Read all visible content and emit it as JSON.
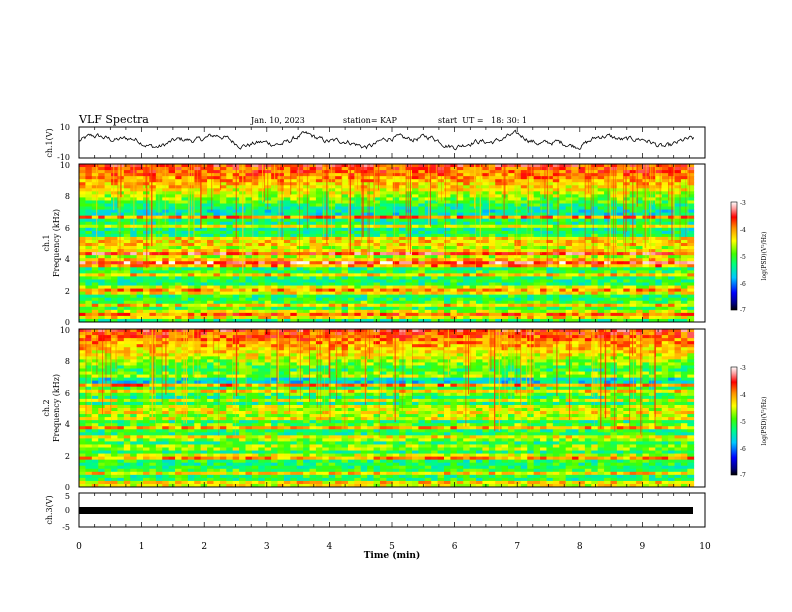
{
  "header": {
    "title": "VLF Spectra",
    "date": "Jan. 10, 2023",
    "station": "station= KAP",
    "start": "start  UT =   18: 30: 1"
  },
  "chart_data": [
    {
      "type": "line",
      "panel": "ch1-waveform",
      "ylabel": "ch.1(V)",
      "ylim": [
        -10,
        10
      ],
      "ytick_labels": [
        "10",
        "-10"
      ],
      "xlim": [
        0,
        10
      ],
      "x_data_end": 9.82,
      "amplitude_range": [
        -6,
        8
      ]
    },
    {
      "type": "heatmap",
      "panel": "ch1-spectrogram",
      "ylabel_line1": "ch.1",
      "ylabel_line2": "Frequency (kHz)",
      "ylim": [
        0,
        10
      ],
      "ytick_labels": [
        "0",
        "2",
        "4",
        "6",
        "8",
        "10"
      ],
      "xlim": [
        0,
        10
      ],
      "x_data_end": 9.82,
      "colorbar": {
        "label": "log(PSD)(V²/Hz)",
        "range": [
          -7,
          -3
        ],
        "tick_labels": [
          "-3",
          "-4",
          "-5",
          "-6",
          "-7"
        ]
      },
      "bands_khz": [
        {
          "f": 0.4,
          "level": -3.1
        },
        {
          "f": 0.7,
          "level": -4.5
        },
        {
          "f": 1.1,
          "level": -4.1
        },
        {
          "f": 1.9,
          "level": -4.0
        },
        {
          "f": 2.1,
          "level": -3.6
        },
        {
          "f": 3.0,
          "level": -4.2
        },
        {
          "f": 3.6,
          "level": -3.9
        },
        {
          "f": 3.75,
          "level": -3.4
        },
        {
          "f": 4.0,
          "level": -4.0
        },
        {
          "f": 4.3,
          "level": -3.5
        },
        {
          "f": 4.6,
          "level": -3.8
        },
        {
          "f": 5.0,
          "level": -3.4
        },
        {
          "f": 5.3,
          "level": -4.3
        },
        {
          "f": 6.1,
          "level": -4.4
        },
        {
          "f": 6.6,
          "level": -3.8
        }
      ]
    },
    {
      "type": "heatmap",
      "panel": "ch2-spectrogram",
      "ylabel_line1": "ch.2",
      "ylabel_line2": "Frequency (kHz)",
      "ylim": [
        0,
        10
      ],
      "ytick_labels": [
        "0",
        "2",
        "4",
        "6",
        "8",
        "10"
      ],
      "xlim": [
        0,
        10
      ],
      "x_data_end": 9.82,
      "colorbar": {
        "label": "log(PSD)(V²/Hz)",
        "range": [
          -7,
          -3
        ],
        "tick_labels": [
          "-3",
          "-4",
          "-5",
          "-6",
          "-7"
        ]
      },
      "bands_khz": [
        {
          "f": 0.2,
          "level": -3.6
        },
        {
          "f": 0.9,
          "level": -4.2
        },
        {
          "f": 1.9,
          "level": -3.5
        },
        {
          "f": 2.5,
          "level": -4.3
        },
        {
          "f": 3.1,
          "level": -4.0
        },
        {
          "f": 3.8,
          "level": -3.9
        },
        {
          "f": 4.4,
          "level": -4.1
        },
        {
          "f": 4.7,
          "level": -4.4
        },
        {
          "f": 5.0,
          "level": -4.0
        },
        {
          "f": 5.5,
          "level": -4.5
        },
        {
          "f": 6.0,
          "level": -4.0
        },
        {
          "f": 6.4,
          "level": -3.8
        },
        {
          "f": 7.1,
          "level": -4.3
        }
      ]
    },
    {
      "type": "line",
      "panel": "ch3-waveform",
      "ylabel": "ch.3(V)",
      "ylim": [
        -5,
        5
      ],
      "ytick_labels": [
        "5",
        "0",
        "-5"
      ],
      "xlim": [
        0,
        10
      ],
      "x_data_end": 9.82,
      "constant_band": [
        -0.5,
        0.5
      ]
    }
  ],
  "xaxis": {
    "label": "Time (min)",
    "tick_labels": [
      "0",
      "1",
      "2",
      "3",
      "4",
      "5",
      "6",
      "7",
      "8",
      "9",
      "10"
    ]
  }
}
